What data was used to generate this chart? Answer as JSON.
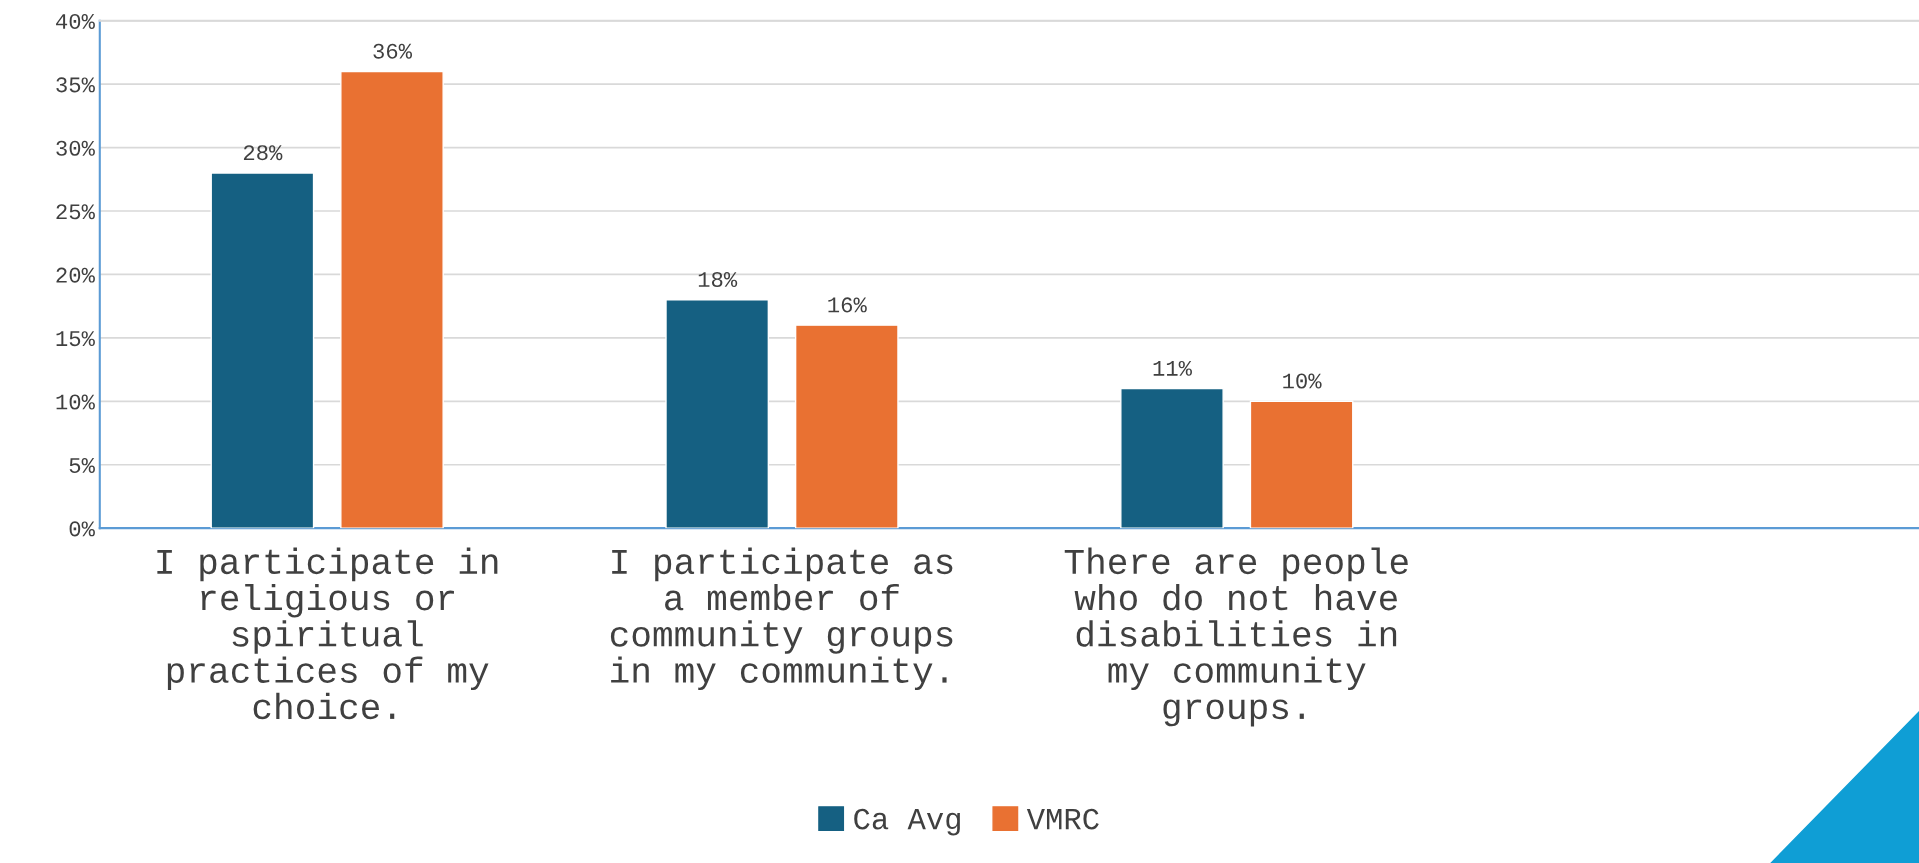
{
  "chart_data": {
    "type": "bar",
    "categories": [
      "I participate in\nreligious or\nspiritual\npractices of my\nchoice.",
      "I participate as\na member of\ncommunity groups\nin my community.",
      "There are people\nwho do not have\ndisabilities in\nmy community\ngroups.",
      null
    ],
    "series": [
      {
        "name": "Ca Avg",
        "color": "#156082",
        "values": [
          28,
          18,
          11,
          null
        ],
        "value_labels": [
          "28%",
          "18%",
          "11%",
          null
        ]
      },
      {
        "name": "VMRC",
        "color": "#e97132",
        "values": [
          36,
          16,
          10,
          null
        ],
        "value_labels": [
          "36%",
          "16%",
          "10%",
          null
        ]
      }
    ],
    "ylim": [
      0,
      40
    ],
    "yticks": [
      {
        "value": 0,
        "label": "0%"
      },
      {
        "value": 5,
        "label": "5%"
      },
      {
        "value": 10,
        "label": "10%"
      },
      {
        "value": 15,
        "label": "15%"
      },
      {
        "value": 20,
        "label": "20%"
      },
      {
        "value": 25,
        "label": "25%"
      },
      {
        "value": 30,
        "label": "30%"
      },
      {
        "value": 35,
        "label": "35%"
      },
      {
        "value": 40,
        "label": "40%"
      }
    ],
    "grid": "y",
    "legend": "bottom"
  }
}
